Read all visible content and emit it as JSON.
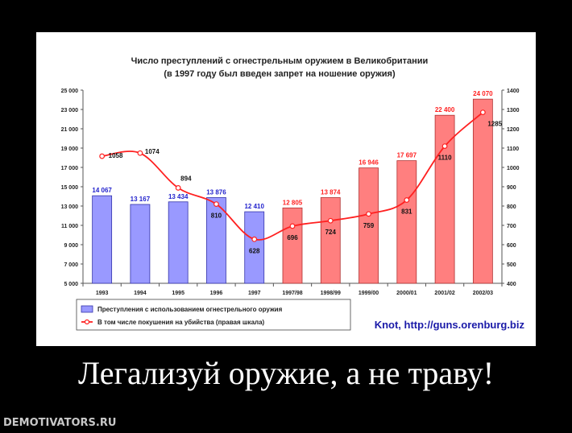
{
  "caption": "Легализуй оружие, а не траву!",
  "watermark": "DEMOTIVATORS.RU",
  "source_label": "Knot, http://guns.orenburg.biz",
  "colors": {
    "bar_before": "#9999ff",
    "bar_before_stroke": "#3333aa",
    "bar_after": "#ff7f7f",
    "bar_after_stroke": "#b03030",
    "line": "#ff2020",
    "label_before": "#1f1fcc",
    "label_after": "#ff2020"
  },
  "chart_data": {
    "type": "bar",
    "title": "Число преступлений с огнестрельным оружием в Великобритании",
    "subtitle": "(в 1997 году был введен запрет на ношение оружия)",
    "categories": [
      "1993",
      "1994",
      "1995",
      "1996",
      "1997",
      "1997/98",
      "1998/99",
      "1999/00",
      "2000/01",
      "2001/02",
      "2002/03"
    ],
    "ylim": [
      5000,
      25000
    ],
    "y_ticks": [
      "5 000",
      "7 000",
      "9 000",
      "11 000",
      "13 000",
      "15 000",
      "17 000",
      "19 000",
      "21 000",
      "23 000",
      "25 000"
    ],
    "y2lim": [
      400,
      1400
    ],
    "y2_ticks": [
      "400",
      "500",
      "600",
      "700",
      "800",
      "900",
      "1000",
      "1100",
      "1200",
      "1300",
      "1400"
    ],
    "grid": false,
    "legend_position": "bottom-left",
    "series": [
      {
        "name": "Преступления с использованием огнестрельного оружия",
        "kind": "bar",
        "axis": "left",
        "values": [
          14067,
          13167,
          13434,
          13876,
          12410,
          12805,
          13874,
          16946,
          17697,
          22400,
          24070
        ],
        "labels": [
          "14 067",
          "13 167",
          "13 434",
          "13 876",
          "12 410",
          "12 805",
          "13 874",
          "16 946",
          "17 697",
          "22 400",
          "24 070"
        ]
      },
      {
        "name": "В том числе покушения на убийства (правая шкала)",
        "kind": "line",
        "axis": "right",
        "values": [
          1058,
          1074,
          894,
          810,
          628,
          696,
          724,
          759,
          831,
          1110,
          1285
        ],
        "labels": [
          "1058",
          "1074",
          "894",
          "810",
          "628",
          "696",
          "724",
          "759",
          "831",
          "1110",
          "1285"
        ]
      }
    ]
  }
}
